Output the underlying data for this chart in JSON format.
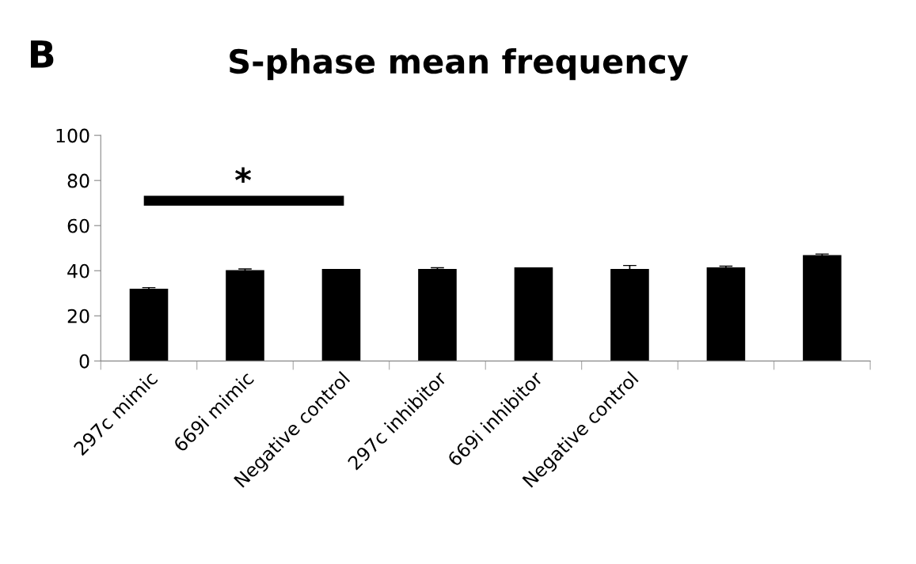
{
  "chart_data": {
    "type": "bar",
    "title": "S-phase mean frequency",
    "categories": [
      "297c mimic",
      "669i mimic",
      "Negative control",
      "297c inhibitor",
      "669i inhibitor",
      "Negative control",
      null,
      null
    ],
    "values": [
      32,
      40.3,
      40.8,
      40.8,
      41.5,
      40.8,
      41.5,
      46.9
    ],
    "errors": [
      0.5,
      0.5,
      null,
      0.5,
      null,
      1.5,
      0.5,
      0.5
    ],
    "color": "#000000",
    "ylim": [
      0,
      100
    ],
    "yticks": [
      0,
      20,
      40,
      60,
      80,
      100
    ],
    "grid": false,
    "annotations": [
      "B",
      "*"
    ]
  }
}
